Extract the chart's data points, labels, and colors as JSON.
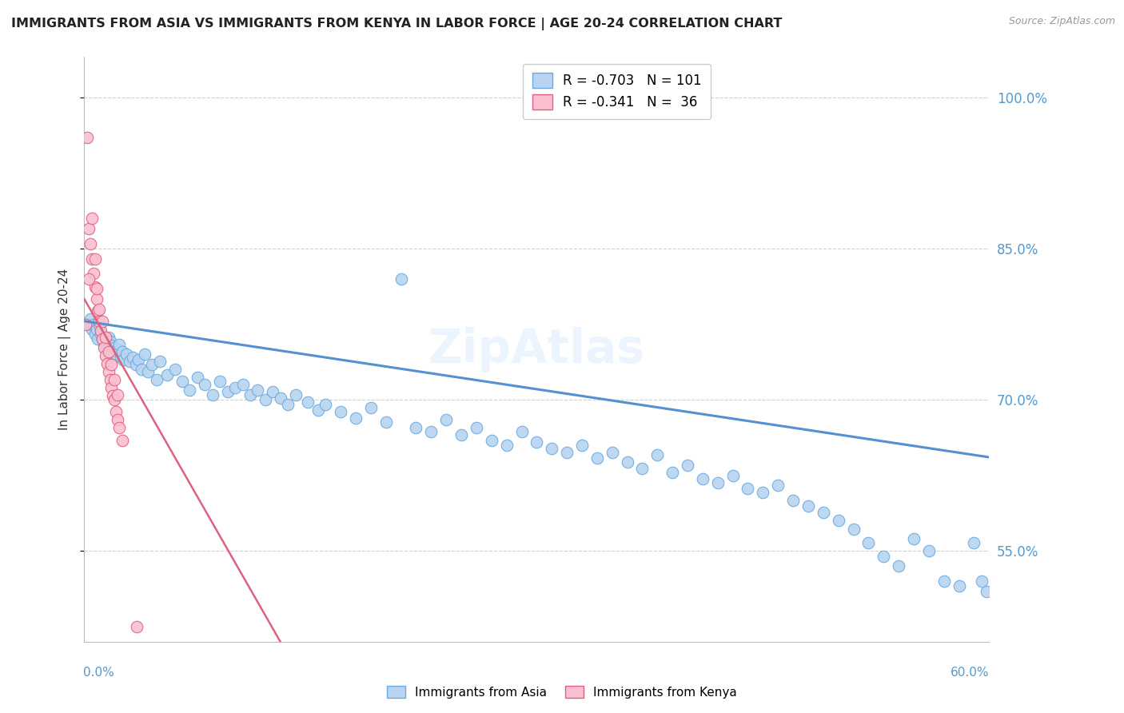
{
  "title": "IMMIGRANTS FROM ASIA VS IMMIGRANTS FROM KENYA IN LABOR FORCE | AGE 20-24 CORRELATION CHART",
  "source": "Source: ZipAtlas.com",
  "ylabel": "In Labor Force | Age 20-24",
  "xlim": [
    0.0,
    0.6
  ],
  "ylim": [
    0.46,
    1.04
  ],
  "yticks": [
    0.55,
    0.7,
    0.85,
    1.0
  ],
  "ytick_labels": [
    "55.0%",
    "70.0%",
    "85.0%",
    "100.0%"
  ],
  "xticks": [
    0.0,
    0.1,
    0.2,
    0.3,
    0.4,
    0.5,
    0.6
  ],
  "background_color": "#ffffff",
  "grid_color": "#d0d0d0",
  "watermark": "ZipAtlas",
  "legend_R_asia": "-0.703",
  "legend_N_asia": "101",
  "legend_R_kenya": "-0.341",
  "legend_N_kenya": "36",
  "asia_color": "#b8d4f0",
  "asia_edge_color": "#6aaae0",
  "kenya_color": "#f8c0d0",
  "kenya_edge_color": "#e06080",
  "asia_line_color": "#5590d0",
  "kenya_line_color": "#e06080",
  "axis_color": "#5599cc",
  "asia_line_x0": 0.0,
  "asia_line_y0": 0.778,
  "asia_line_x1": 0.6,
  "asia_line_y1": 0.643,
  "kenya_line_x0": 0.0,
  "kenya_line_y0": 0.8,
  "kenya_line_x1": 0.13,
  "kenya_line_y1": 0.46,
  "asia_scatter_x": [
    0.003,
    0.004,
    0.005,
    0.006,
    0.007,
    0.008,
    0.009,
    0.01,
    0.011,
    0.012,
    0.013,
    0.014,
    0.015,
    0.016,
    0.017,
    0.018,
    0.019,
    0.02,
    0.021,
    0.022,
    0.023,
    0.024,
    0.025,
    0.026,
    0.028,
    0.03,
    0.032,
    0.034,
    0.036,
    0.038,
    0.04,
    0.042,
    0.045,
    0.048,
    0.05,
    0.055,
    0.06,
    0.065,
    0.07,
    0.075,
    0.08,
    0.085,
    0.09,
    0.095,
    0.1,
    0.105,
    0.11,
    0.115,
    0.12,
    0.125,
    0.13,
    0.135,
    0.14,
    0.148,
    0.155,
    0.16,
    0.17,
    0.18,
    0.19,
    0.2,
    0.21,
    0.22,
    0.23,
    0.24,
    0.25,
    0.26,
    0.27,
    0.28,
    0.29,
    0.3,
    0.31,
    0.32,
    0.33,
    0.34,
    0.35,
    0.36,
    0.37,
    0.38,
    0.39,
    0.4,
    0.41,
    0.42,
    0.43,
    0.44,
    0.45,
    0.46,
    0.47,
    0.48,
    0.49,
    0.5,
    0.51,
    0.52,
    0.53,
    0.54,
    0.55,
    0.56,
    0.57,
    0.58,
    0.59,
    0.595,
    0.598
  ],
  "asia_scatter_y": [
    0.775,
    0.78,
    0.77,
    0.775,
    0.765,
    0.77,
    0.76,
    0.775,
    0.765,
    0.76,
    0.755,
    0.76,
    0.755,
    0.762,
    0.758,
    0.754,
    0.748,
    0.752,
    0.745,
    0.75,
    0.755,
    0.742,
    0.748,
    0.74,
    0.745,
    0.738,
    0.742,
    0.735,
    0.74,
    0.73,
    0.745,
    0.728,
    0.735,
    0.72,
    0.738,
    0.725,
    0.73,
    0.718,
    0.71,
    0.722,
    0.715,
    0.705,
    0.718,
    0.708,
    0.712,
    0.715,
    0.705,
    0.71,
    0.7,
    0.708,
    0.702,
    0.695,
    0.705,
    0.698,
    0.69,
    0.695,
    0.688,
    0.682,
    0.692,
    0.678,
    0.82,
    0.672,
    0.668,
    0.68,
    0.665,
    0.672,
    0.66,
    0.655,
    0.668,
    0.658,
    0.652,
    0.648,
    0.655,
    0.642,
    0.648,
    0.638,
    0.632,
    0.645,
    0.628,
    0.635,
    0.622,
    0.618,
    0.625,
    0.612,
    0.608,
    0.615,
    0.6,
    0.595,
    0.588,
    0.58,
    0.572,
    0.558,
    0.545,
    0.535,
    0.562,
    0.55,
    0.52,
    0.515,
    0.558,
    0.52,
    0.51
  ],
  "kenya_scatter_x": [
    0.001,
    0.002,
    0.003,
    0.004,
    0.005,
    0.006,
    0.007,
    0.008,
    0.009,
    0.01,
    0.011,
    0.012,
    0.013,
    0.014,
    0.015,
    0.016,
    0.017,
    0.018,
    0.019,
    0.02,
    0.021,
    0.022,
    0.023,
    0.025,
    0.003,
    0.005,
    0.007,
    0.008,
    0.01,
    0.012,
    0.014,
    0.016,
    0.018,
    0.02,
    0.022,
    0.035
  ],
  "kenya_scatter_y": [
    0.775,
    0.96,
    0.87,
    0.855,
    0.84,
    0.825,
    0.812,
    0.8,
    0.788,
    0.778,
    0.768,
    0.76,
    0.752,
    0.744,
    0.736,
    0.728,
    0.72,
    0.712,
    0.704,
    0.7,
    0.688,
    0.68,
    0.672,
    0.66,
    0.82,
    0.88,
    0.84,
    0.81,
    0.79,
    0.778,
    0.762,
    0.748,
    0.735,
    0.72,
    0.705,
    0.475
  ]
}
